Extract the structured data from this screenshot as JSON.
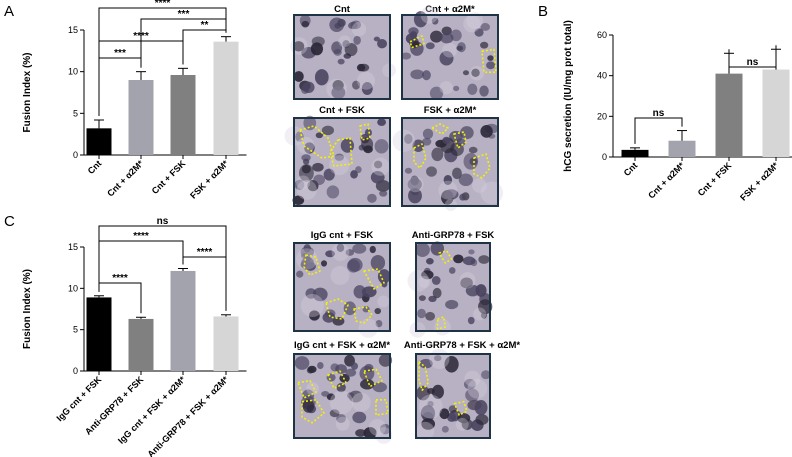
{
  "panel_labels": {
    "A": "A",
    "B": "B",
    "C": "C"
  },
  "chart_data": [
    {
      "id": "A",
      "type": "bar",
      "title": "",
      "xlabel": "",
      "ylabel": "Fusion Index (%)",
      "ylim": [
        0,
        15
      ],
      "yticks": [
        0,
        5,
        10,
        15
      ],
      "categories": [
        "Cnt",
        "Cnt + α2M*",
        "Cnt + FSK",
        "FSK + α2M*"
      ],
      "values": [
        3.2,
        9.0,
        9.6,
        13.6
      ],
      "errors": [
        1.0,
        1.0,
        0.8,
        0.6
      ],
      "colors": [
        "#000000",
        "#a3a3ad",
        "#808080",
        "#d6d6d6"
      ],
      "significance": [
        {
          "from": 0,
          "to": 3,
          "label": "****"
        },
        {
          "from": 1,
          "to": 3,
          "label": "***"
        },
        {
          "from": 2,
          "to": 3,
          "label": "**"
        },
        {
          "from": 0,
          "to": 2,
          "label": "****"
        },
        {
          "from": 0,
          "to": 1,
          "label": "***"
        }
      ]
    },
    {
      "id": "B",
      "type": "bar",
      "title": "",
      "xlabel": "",
      "ylabel": "hCG secretion (IU/mg prot total)",
      "ylim": [
        0,
        60
      ],
      "yticks": [
        0,
        20,
        40,
        60
      ],
      "categories": [
        "Cnt",
        "Cnt + α2M*",
        "Cnt + FSK",
        "FSK + α2M*"
      ],
      "values": [
        3.5,
        8.0,
        41.0,
        43.0
      ],
      "errors": [
        1.0,
        5.0,
        10.0,
        10.0
      ],
      "colors": [
        "#000000",
        "#a3a3ad",
        "#808080",
        "#d6d6d6"
      ],
      "significance": [
        {
          "from": 0,
          "to": 1,
          "label": "ns"
        },
        {
          "from": 2,
          "to": 3,
          "label": "ns"
        }
      ]
    },
    {
      "id": "C",
      "type": "bar",
      "title": "",
      "xlabel": "",
      "ylabel": "Fusion Index (%)",
      "ylim": [
        0,
        15
      ],
      "yticks": [
        0,
        5,
        10,
        15
      ],
      "categories": [
        "IgG cnt + FSK",
        "Anti-GRP78 + FSK",
        "IgG cnt + FSK + α2M*",
        "Anti-GRP78 + FSK + α2M*"
      ],
      "values": [
        8.9,
        6.3,
        12.1,
        6.6
      ],
      "errors": [
        0.2,
        0.2,
        0.3,
        0.2
      ],
      "colors": [
        "#000000",
        "#808080",
        "#a3a3ad",
        "#d6d6d6"
      ],
      "significance": [
        {
          "from": 0,
          "to": 3,
          "label": "ns"
        },
        {
          "from": 0,
          "to": 2,
          "label": "****"
        },
        {
          "from": 2,
          "to": 3,
          "label": "****"
        },
        {
          "from": 0,
          "to": 1,
          "label": "****"
        }
      ]
    }
  ],
  "micrographs": [
    {
      "title": "Cnt"
    },
    {
      "title": "Cnt + α2M*"
    },
    {
      "title": "Cnt + FSK"
    },
    {
      "title": "FSK + α2M*"
    },
    {
      "title": "IgG cnt + FSK"
    },
    {
      "title": "Anti-GRP78 + FSK"
    },
    {
      "title": "IgG cnt + FSK + α2M*"
    },
    {
      "title": "Anti-GRP78 + FSK + α2M*"
    }
  ]
}
